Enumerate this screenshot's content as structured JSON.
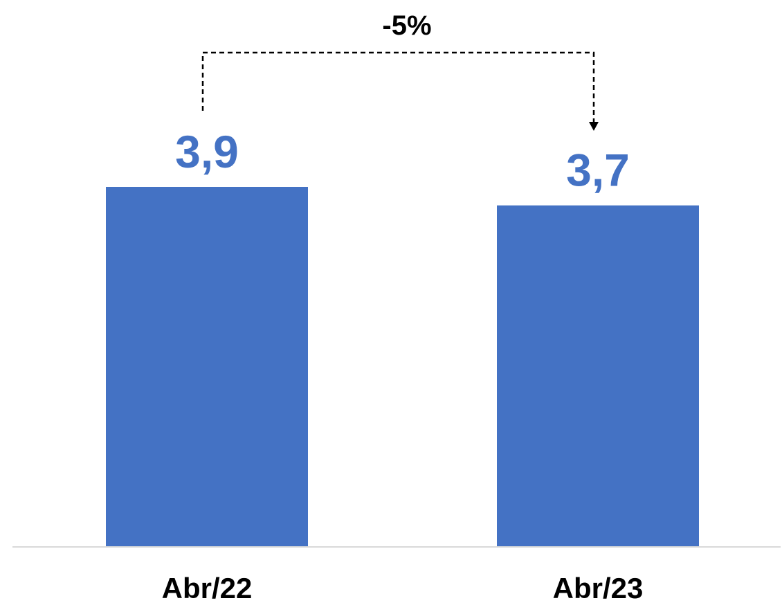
{
  "colors": {
    "bar": "#4472C4",
    "value_label": "#4472C4",
    "axis": "#D9D9D9",
    "bracket": "#000000"
  },
  "change_annotation": {
    "label": "-5%",
    "style": "dashed bracket arrow from first bar to second bar"
  },
  "chart_data": {
    "type": "bar",
    "categories": [
      "Abr/22",
      "Abr/23"
    ],
    "values": [
      3.9,
      3.7
    ],
    "value_labels": [
      "3,9",
      "3,7"
    ],
    "title": "",
    "xlabel": "",
    "ylabel": "",
    "ylim": [
      0,
      4.2
    ],
    "grid": false,
    "legend": "none"
  }
}
